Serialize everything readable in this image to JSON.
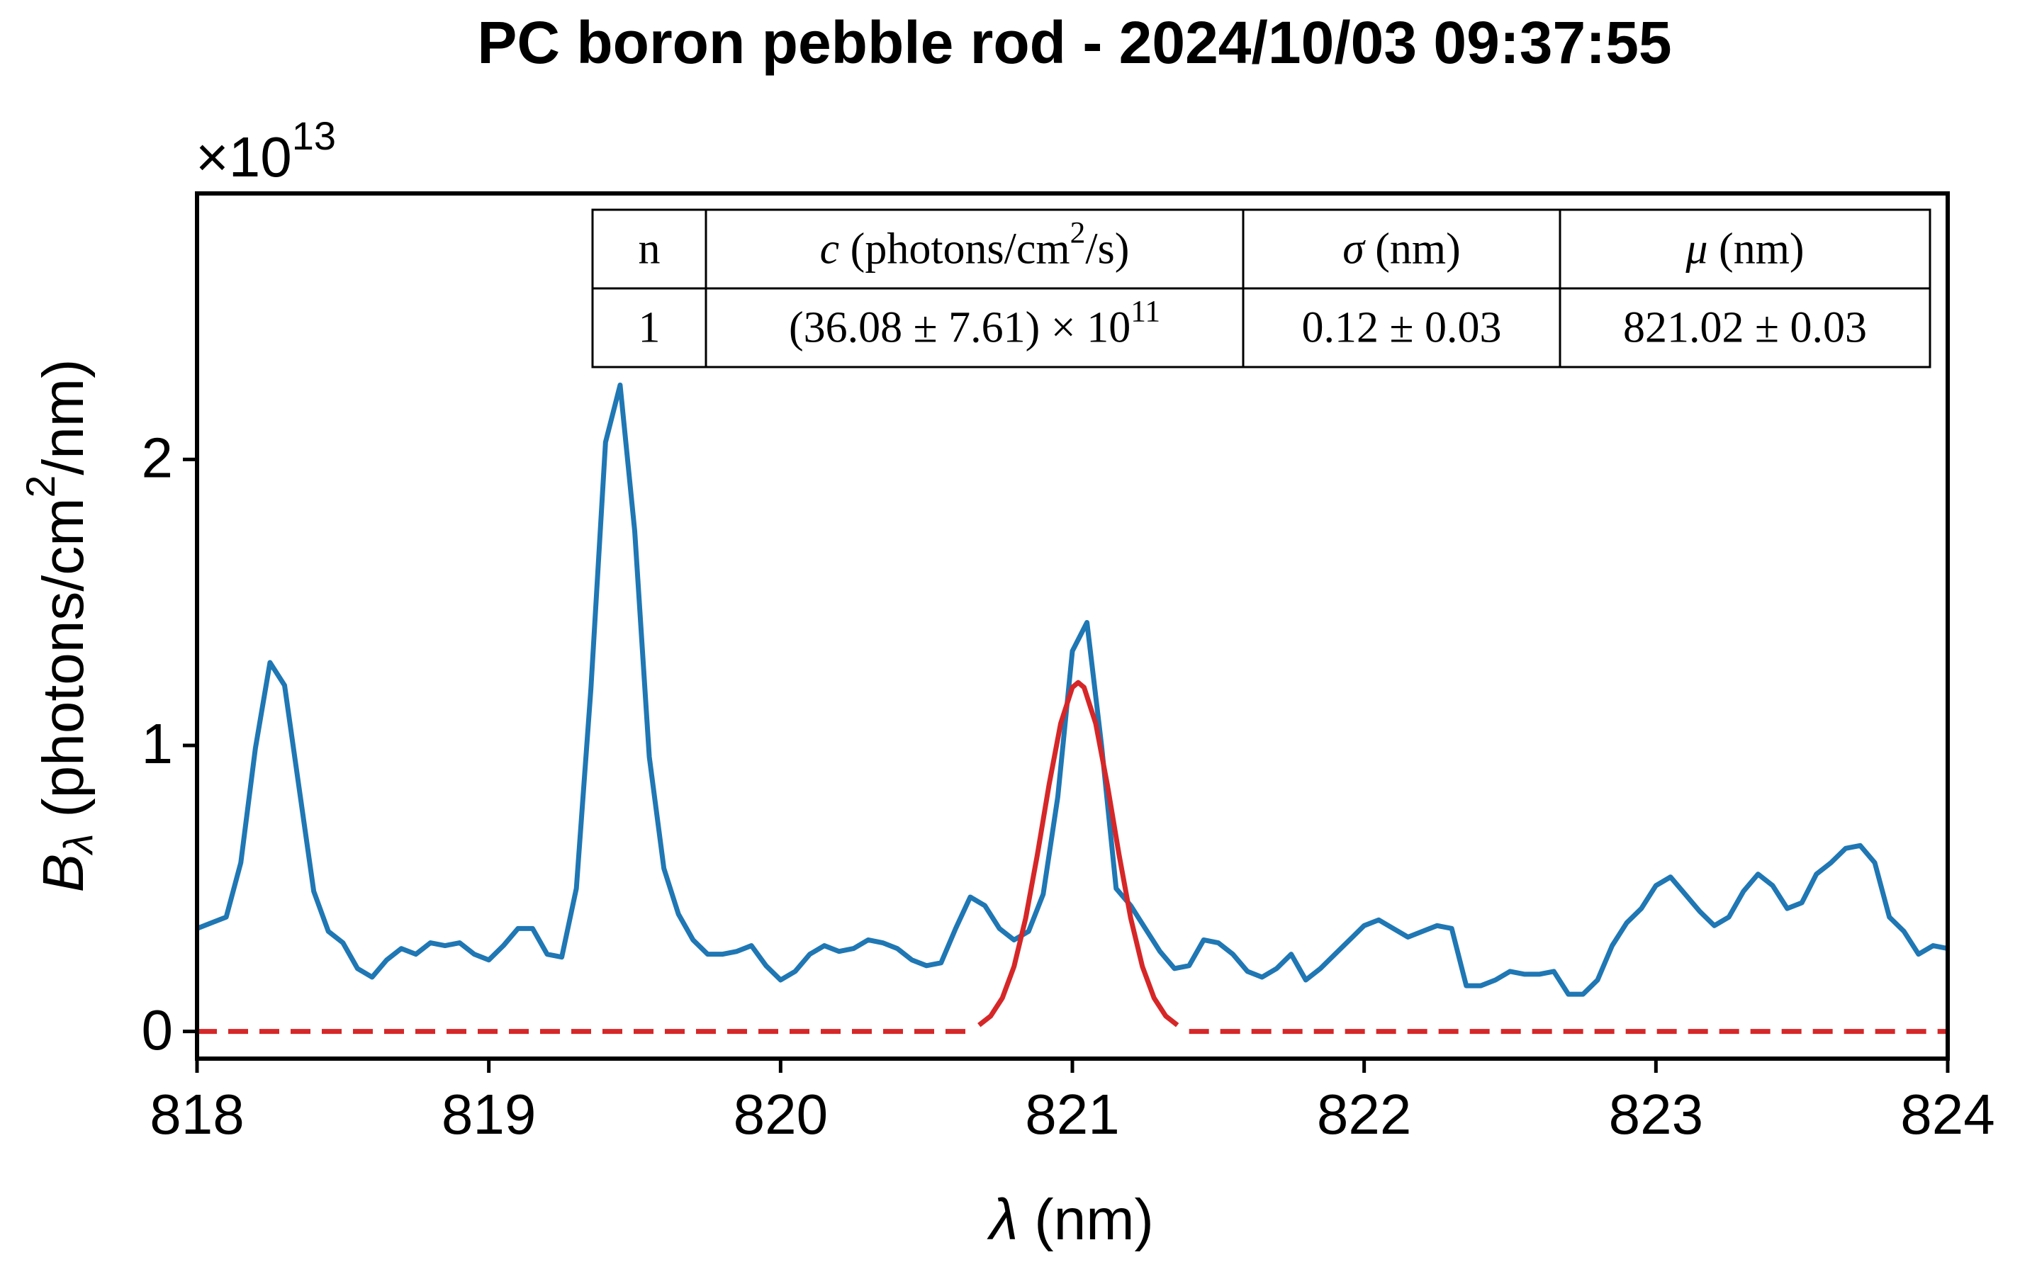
{
  "chart_data": {
    "type": "line",
    "title": "PC boron pebble rod - 2024/10/03 09:37:55",
    "xlabel": [
      {
        "text": "λ",
        "style": "italic"
      },
      {
        "text": " (nm)"
      }
    ],
    "ylabel": [
      {
        "text": "B",
        "style": "italic"
      },
      {
        "text": "λ",
        "style": "sub-italic"
      },
      {
        "text": " (photons/cm"
      },
      {
        "text": "2",
        "style": "sup"
      },
      {
        "text": "/nm)"
      }
    ],
    "y_offset_label": [
      {
        "text": "×10"
      },
      {
        "text": "13",
        "style": "sup"
      }
    ],
    "xlim": [
      818,
      824
    ],
    "ylim": [
      -0.095,
      2.93
    ],
    "xticks": [
      818,
      819,
      820,
      821,
      822,
      823,
      824
    ],
    "yticks": [
      0,
      1,
      2
    ],
    "grid": false,
    "series": [
      {
        "name": "measured",
        "color": "#1f77b4",
        "dash": "solid",
        "x": [
          818.0,
          818.05,
          818.1,
          818.15,
          818.2,
          818.25,
          818.3,
          818.35,
          818.4,
          818.45,
          818.5,
          818.55,
          818.6,
          818.65,
          818.7,
          818.75,
          818.8,
          818.85,
          818.9,
          818.95,
          819.0,
          819.05,
          819.1,
          819.15,
          819.2,
          819.25,
          819.3,
          819.35,
          819.4,
          819.45,
          819.5,
          819.55,
          819.6,
          819.65,
          819.7,
          819.75,
          819.8,
          819.85,
          819.9,
          819.95,
          820.0,
          820.05,
          820.1,
          820.15,
          820.2,
          820.25,
          820.3,
          820.35,
          820.4,
          820.45,
          820.5,
          820.55,
          820.6,
          820.65,
          820.7,
          820.75,
          820.8,
          820.85,
          820.9,
          820.95,
          821.0,
          821.05,
          821.1,
          821.15,
          821.2,
          821.25,
          821.3,
          821.35,
          821.4,
          821.45,
          821.5,
          821.55,
          821.6,
          821.65,
          821.7,
          821.75,
          821.8,
          821.85,
          821.9,
          821.95,
          822.0,
          822.05,
          822.1,
          822.15,
          822.2,
          822.25,
          822.3,
          822.35,
          822.4,
          822.45,
          822.5,
          822.55,
          822.6,
          822.65,
          822.7,
          822.75,
          822.8,
          822.85,
          822.9,
          822.95,
          823.0,
          823.05,
          823.1,
          823.15,
          823.2,
          823.25,
          823.3,
          823.35,
          823.4,
          823.45,
          823.5,
          823.55,
          823.6,
          823.65,
          823.7,
          823.75,
          823.8,
          823.85,
          823.9,
          823.95,
          824.0
        ],
        "values": [
          0.36,
          0.38,
          0.4,
          0.59,
          0.99,
          1.29,
          1.21,
          0.85,
          0.49,
          0.35,
          0.31,
          0.22,
          0.19,
          0.25,
          0.29,
          0.27,
          0.31,
          0.3,
          0.31,
          0.27,
          0.25,
          0.3,
          0.36,
          0.36,
          0.27,
          0.26,
          0.5,
          1.2,
          2.06,
          2.26,
          1.75,
          0.96,
          0.57,
          0.41,
          0.32,
          0.27,
          0.27,
          0.28,
          0.3,
          0.23,
          0.18,
          0.21,
          0.27,
          0.3,
          0.28,
          0.29,
          0.32,
          0.31,
          0.29,
          0.25,
          0.23,
          0.24,
          0.36,
          0.47,
          0.44,
          0.36,
          0.32,
          0.35,
          0.48,
          0.82,
          1.33,
          1.43,
          1.0,
          0.5,
          0.44,
          0.36,
          0.28,
          0.22,
          0.23,
          0.32,
          0.31,
          0.27,
          0.21,
          0.19,
          0.22,
          0.27,
          0.18,
          0.22,
          0.27,
          0.32,
          0.37,
          0.39,
          0.36,
          0.33,
          0.35,
          0.37,
          0.36,
          0.16,
          0.16,
          0.18,
          0.21,
          0.2,
          0.2,
          0.21,
          0.13,
          0.13,
          0.18,
          0.3,
          0.38,
          0.43,
          0.51,
          0.54,
          0.48,
          0.42,
          0.37,
          0.4,
          0.49,
          0.55,
          0.51,
          0.43,
          0.45,
          0.55,
          0.59,
          0.64,
          0.65,
          0.59,
          0.4,
          0.35,
          0.27,
          0.3,
          0.29
        ]
      },
      {
        "name": "fit",
        "color": "#d62728",
        "dash": "solid",
        "x": [
          820.68,
          820.72,
          820.76,
          820.8,
          820.84,
          820.88,
          820.92,
          820.96,
          821.0,
          821.02,
          821.04,
          821.08,
          821.12,
          821.16,
          821.2,
          821.24,
          821.28,
          821.32,
          821.36
        ],
        "values": [
          0.022,
          0.054,
          0.117,
          0.227,
          0.396,
          0.618,
          0.862,
          1.077,
          1.203,
          1.22,
          1.203,
          1.077,
          0.862,
          0.618,
          0.396,
          0.227,
          0.117,
          0.054,
          0.022
        ]
      },
      {
        "name": "fit-extension",
        "color": "#d62728",
        "dash": "dashed",
        "x": [
          818,
          820.64,
          null,
          821.4,
          824
        ],
        "values": [
          0,
          0,
          null,
          0,
          0
        ]
      }
    ],
    "fit_table": {
      "header": [
        [
          {
            "text": "n"
          }
        ],
        [
          {
            "text": "c",
            "style": "italic"
          },
          {
            "text": " (photons/cm"
          },
          {
            "text": "2",
            "style": "sup"
          },
          {
            "text": "/s)"
          }
        ],
        [
          {
            "text": "σ",
            "style": "italic"
          },
          {
            "text": " (nm)"
          }
        ],
        [
          {
            "text": "μ",
            "style": "italic"
          },
          {
            "text": " (nm)"
          }
        ]
      ],
      "rows": [
        [
          [
            {
              "text": "1"
            }
          ],
          [
            {
              "text": "(36.08 ± 7.61) × 10"
            },
            {
              "text": "11",
              "style": "sup"
            }
          ],
          [
            {
              "text": "0.12 ± 0.03"
            }
          ],
          [
            {
              "text": "821.02 ± 0.03"
            }
          ]
        ]
      ]
    }
  }
}
